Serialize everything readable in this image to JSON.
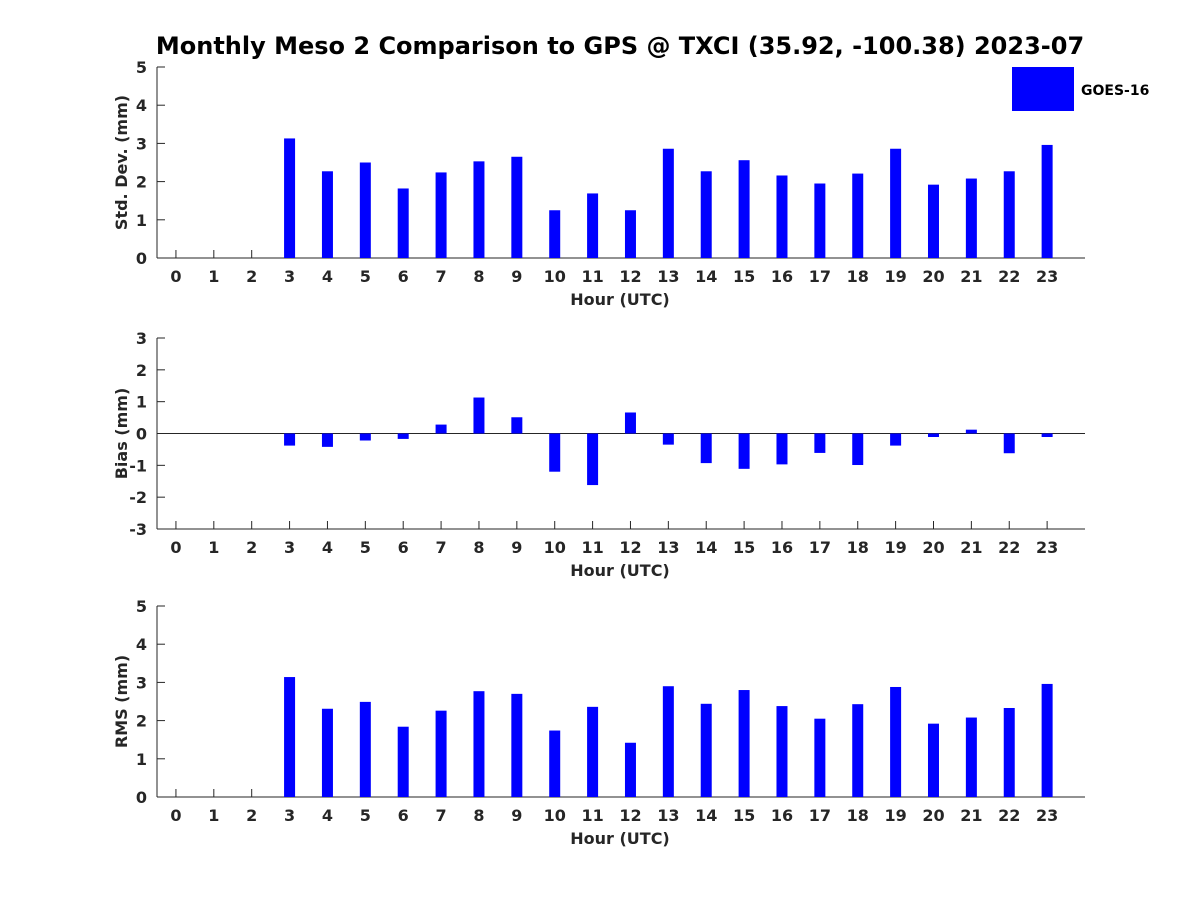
{
  "title": "Monthly Meso 2 Comparison to GPS @ TXCI (35.92, -100.38) 2023-07",
  "colors": {
    "bar": "#0000ff",
    "axis": "#262626",
    "text": "#262626"
  },
  "legend": {
    "label": "GOES-16",
    "placement": "top-right"
  },
  "chart_data": [
    {
      "type": "bar",
      "name": "std-dev",
      "xlabel": "Hour (UTC)",
      "ylabel": "Std. Dev. (mm)",
      "ylim": [
        0,
        5
      ],
      "yticks": [
        "0",
        "1",
        "2",
        "3",
        "4",
        "5"
      ],
      "categories": [
        "0",
        "1",
        "2",
        "3",
        "4",
        "5",
        "6",
        "7",
        "8",
        "9",
        "10",
        "11",
        "12",
        "13",
        "14",
        "15",
        "16",
        "17",
        "18",
        "19",
        "20",
        "21",
        "22",
        "23"
      ],
      "series": [
        {
          "name": "GOES-16",
          "values": [
            null,
            null,
            null,
            3.13,
            2.27,
            2.5,
            1.82,
            2.24,
            2.53,
            2.65,
            1.25,
            1.69,
            1.25,
            2.86,
            2.27,
            2.56,
            2.16,
            1.95,
            2.21,
            2.86,
            1.92,
            2.08,
            2.27,
            2.96
          ]
        }
      ]
    },
    {
      "type": "bar",
      "name": "bias",
      "xlabel": "Hour (UTC)",
      "ylabel": "Bias (mm)",
      "ylim": [
        -3,
        3
      ],
      "yticks": [
        "-3",
        "-2",
        "-1",
        "0",
        "1",
        "2",
        "3"
      ],
      "categories": [
        "0",
        "1",
        "2",
        "3",
        "4",
        "5",
        "6",
        "7",
        "8",
        "9",
        "10",
        "11",
        "12",
        "13",
        "14",
        "15",
        "16",
        "17",
        "18",
        "19",
        "20",
        "21",
        "22",
        "23"
      ],
      "series": [
        {
          "name": "GOES-16",
          "values": [
            null,
            null,
            null,
            -0.38,
            -0.42,
            -0.22,
            -0.17,
            0.28,
            1.13,
            0.51,
            -1.2,
            -1.62,
            0.66,
            -0.35,
            -0.93,
            -1.11,
            -0.97,
            -0.61,
            -0.99,
            -0.38,
            -0.11,
            0.12,
            -0.62,
            -0.11
          ]
        }
      ]
    },
    {
      "type": "bar",
      "name": "rms",
      "xlabel": "Hour (UTC)",
      "ylabel": "RMS (mm)",
      "ylim": [
        0,
        5
      ],
      "yticks": [
        "0",
        "1",
        "2",
        "3",
        "4",
        "5"
      ],
      "categories": [
        "0",
        "1",
        "2",
        "3",
        "4",
        "5",
        "6",
        "7",
        "8",
        "9",
        "10",
        "11",
        "12",
        "13",
        "14",
        "15",
        "16",
        "17",
        "18",
        "19",
        "20",
        "21",
        "22",
        "23"
      ],
      "series": [
        {
          "name": "GOES-16",
          "values": [
            null,
            null,
            null,
            3.14,
            2.31,
            2.49,
            1.84,
            2.26,
            2.77,
            2.7,
            1.74,
            2.36,
            1.42,
            2.9,
            2.44,
            2.8,
            2.38,
            2.05,
            2.43,
            2.88,
            1.92,
            2.08,
            2.33,
            2.96
          ]
        }
      ]
    }
  ]
}
